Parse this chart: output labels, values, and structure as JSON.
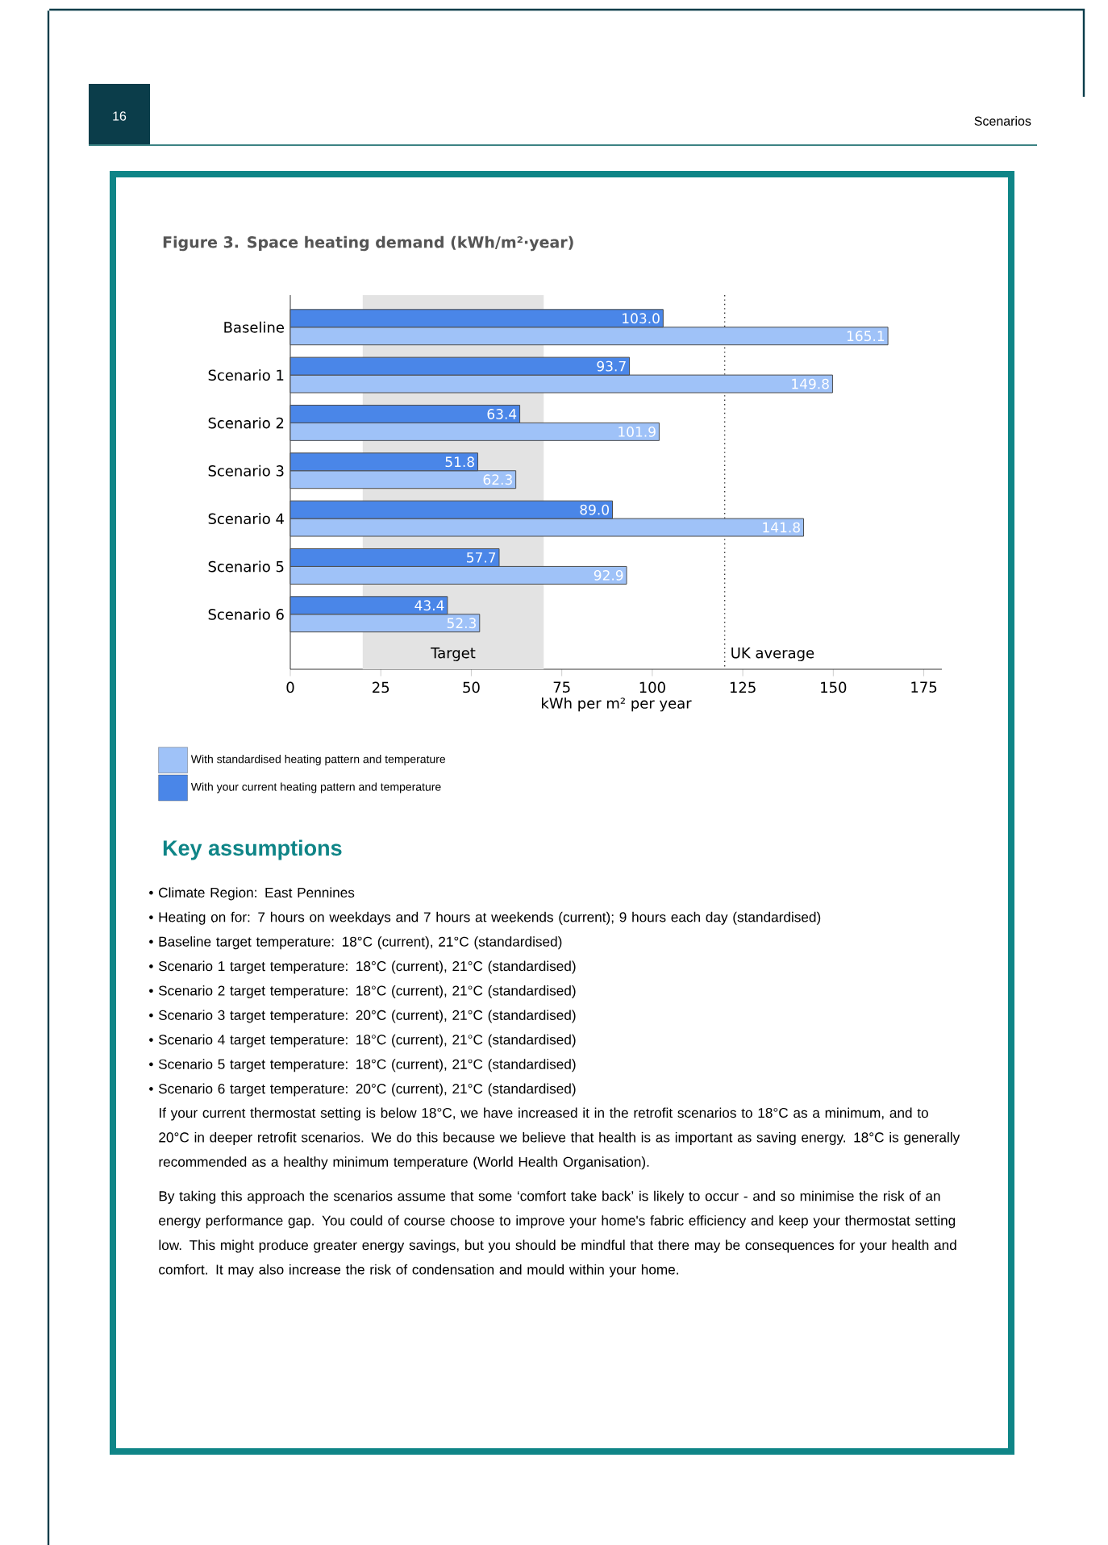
{
  "chart_data": {
    "type": "bar",
    "orientation": "horizontal",
    "title": "Figure 3. Space heating demand (kWh/m²·year)",
    "xlabel": "kWh per m² per year",
    "categories": [
      "Baseline",
      "Scenario 1",
      "Scenario 2",
      "Scenario 3",
      "Scenario 4",
      "Scenario 5",
      "Scenario 6"
    ],
    "series": [
      {
        "name": "With standardised heating pattern and temperature",
        "color": "#9fc2f8",
        "values": [
          165.1,
          149.8,
          101.9,
          62.3,
          141.8,
          92.9,
          52.3
        ],
        "value_labels": [
          "165.1",
          "149.8",
          "101.9",
          "62.3",
          "141.8",
          "92.9",
          "52.3"
        ]
      },
      {
        "name": "With your current heating pattern and temperature",
        "color": "#4a86e8",
        "values": [
          103.0,
          93.7,
          63.4,
          51.8,
          89.0,
          57.7,
          43.4
        ],
        "value_labels": [
          "103.0",
          "93.7",
          "63.4",
          "51.8",
          "89.0",
          "57.7",
          "43.4"
        ]
      }
    ],
    "xlim": [
      0,
      180
    ],
    "xticks": [
      0,
      25,
      50,
      75,
      100,
      125,
      150,
      175
    ],
    "bands": [
      {
        "axis": "x",
        "from": 20,
        "to": 70,
        "label": "Target",
        "color": "#e3e3e3"
      }
    ],
    "ref_lines": [
      {
        "axis": "x",
        "value": 120,
        "label": "UK average",
        "color": "#333333",
        "line_style": "dotted"
      }
    ],
    "legend": "bottom",
    "annotations": [
      "16",
      "Scenarios",
      "Key assumptions",
      "• Climate Region: East Pennines",
      "• Heating on for: 7 hours on weekdays and 7 hours at weekends (current); 9 hours each day (standardised)",
      "• Baseline target temperature: 18°C (current), 21°C (standardised)",
      "• Scenario 1 target temperature: 18°C (current), 21°C (standardised)",
      "• Scenario 2 target temperature: 18°C (current), 21°C (standardised)",
      "• Scenario 3 target temperature: 20°C (current), 21°C (standardised)",
      "• Scenario 4 target temperature: 18°C (current), 21°C (standardised)",
      "• Scenario 5 target temperature: 18°C (current), 21°C (standardised)",
      "• Scenario 6 target temperature: 20°C (current), 21°C (standardised)",
      "If your current thermostat setting is below 18°C, we have increased it in the retrofit scenarios to 18°C as a minimum, and to 20°C in deeper retrofit scenarios. We do this because we believe that health is as important as saving energy. 18°C is generally recommended as a healthy minimum temperature (World Health Organisation).",
      "By taking this approach the scenarios assume that some ‘comfort take back’ is likely to occur - and so minimise the risk of an energy performance gap. You could of course choose to improve your home's fabric efficiency and keep your thermostat setting low. This might produce greater energy savings, but you should be mindful that there may be consequences for your health and comfort. It may also increase the risk of condensation and mould within your home."
    ]
  }
}
